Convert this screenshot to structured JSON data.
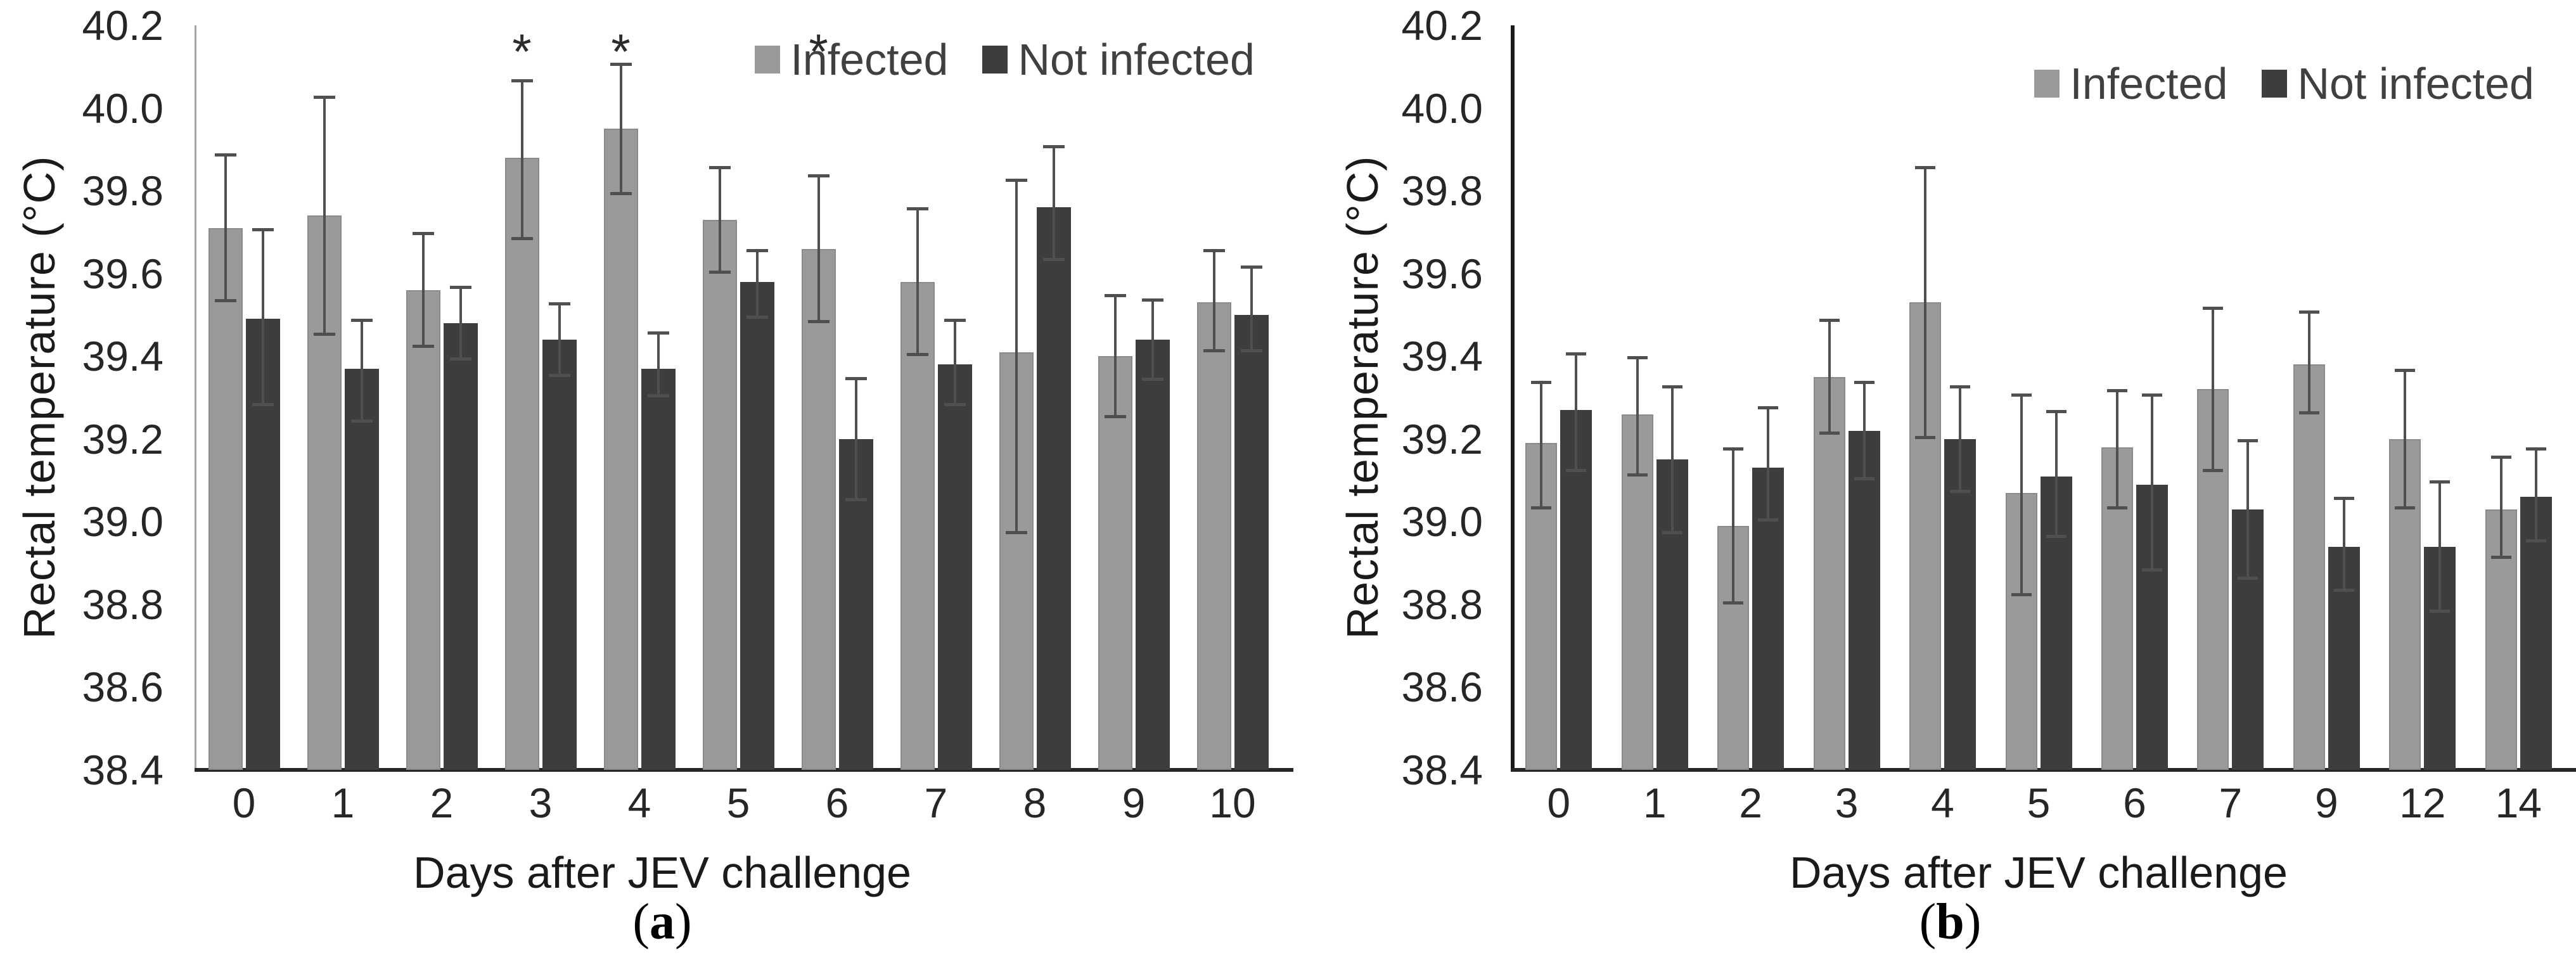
{
  "colors": {
    "infected": "#9a9a9a",
    "not_infected": "#3d3d3d",
    "error_bar": "#4f4f4f",
    "axis_panel_a": "#a6a6a6",
    "axis_panel_b": "#1a1a1a",
    "baseline": "#262626",
    "tick_text": "#262626",
    "legend_text": "#404040"
  },
  "chart_data": [
    {
      "id": "a",
      "type": "bar",
      "caption_open": "(",
      "caption_letter": "a",
      "caption_close": ")",
      "xlabel": "Days after JEV challenge",
      "ylabel": "Rectal temperature (°C)",
      "ylim": [
        38.4,
        40.2
      ],
      "yticks": [
        "40.2",
        "40.0",
        "39.8",
        "39.6",
        "39.4",
        "39.2",
        "39.0",
        "38.8",
        "38.6",
        "38.4"
      ],
      "grid": "off",
      "legend_position": "top-right-inside",
      "categories": [
        "0",
        "1",
        "2",
        "3",
        "4",
        "5",
        "6",
        "7",
        "8",
        "9",
        "10"
      ],
      "series": [
        {
          "name": "Infected",
          "color": "#9a9a9a",
          "values": [
            39.71,
            39.74,
            39.56,
            39.88,
            39.95,
            39.73,
            39.66,
            39.58,
            39.41,
            39.4,
            39.53
          ],
          "err_low": [
            39.53,
            39.45,
            39.42,
            39.68,
            39.79,
            39.6,
            39.48,
            39.4,
            38.97,
            39.25,
            39.41
          ],
          "err_high": [
            39.89,
            40.03,
            39.7,
            40.07,
            40.11,
            39.86,
            39.84,
            39.76,
            39.83,
            39.55,
            39.66
          ]
        },
        {
          "name": "Not infected",
          "color": "#3d3d3d",
          "values": [
            39.49,
            39.37,
            39.48,
            39.44,
            39.37,
            39.58,
            39.2,
            39.38,
            39.76,
            39.44,
            39.5
          ],
          "err_low": [
            39.28,
            39.24,
            39.39,
            39.35,
            39.3,
            39.49,
            39.05,
            39.28,
            39.63,
            39.34,
            39.41
          ],
          "err_high": [
            39.71,
            39.49,
            39.57,
            39.53,
            39.46,
            39.66,
            39.35,
            39.49,
            39.91,
            39.54,
            39.62
          ]
        }
      ],
      "significance": {
        "symbol": "*",
        "category_indices": [
          3,
          4,
          6
        ]
      }
    },
    {
      "id": "b",
      "type": "bar",
      "caption_open": "(",
      "caption_letter": "b",
      "caption_close": ")",
      "xlabel": "Days after JEV challenge",
      "ylabel": "Rectal temperature (°C)",
      "ylim": [
        38.4,
        40.2
      ],
      "yticks": [
        "40.2",
        "40.0",
        "39.8",
        "39.6",
        "39.4",
        "39.2",
        "39.0",
        "38.8",
        "38.6",
        "38.4"
      ],
      "grid": "off",
      "legend_position": "top-right-inside",
      "categories": [
        "0",
        "1",
        "2",
        "3",
        "4",
        "5",
        "6",
        "7",
        "9",
        "12",
        "14"
      ],
      "series": [
        {
          "name": "Infected",
          "color": "#9a9a9a",
          "values": [
            39.19,
            39.26,
            38.99,
            39.35,
            39.53,
            39.07,
            39.18,
            39.32,
            39.38,
            39.2,
            39.03
          ],
          "err_low": [
            39.03,
            39.11,
            38.8,
            39.21,
            39.2,
            38.82,
            39.03,
            39.12,
            39.26,
            39.03,
            38.91
          ],
          "err_high": [
            39.34,
            39.4,
            39.18,
            39.49,
            39.86,
            39.31,
            39.32,
            39.52,
            39.51,
            39.37,
            39.16
          ]
        },
        {
          "name": "Not infected",
          "color": "#3d3d3d",
          "values": [
            39.27,
            39.15,
            39.13,
            39.22,
            39.2,
            39.11,
            39.09,
            39.03,
            38.94,
            38.94,
            39.06
          ],
          "err_low": [
            39.12,
            38.97,
            39.0,
            39.1,
            39.07,
            38.96,
            38.88,
            38.86,
            38.83,
            38.78,
            38.95
          ],
          "err_high": [
            39.41,
            39.33,
            39.28,
            39.34,
            39.33,
            39.27,
            39.31,
            39.2,
            39.06,
            39.1,
            39.18
          ]
        }
      ],
      "significance": {
        "symbol": "*",
        "category_indices": []
      }
    }
  ]
}
